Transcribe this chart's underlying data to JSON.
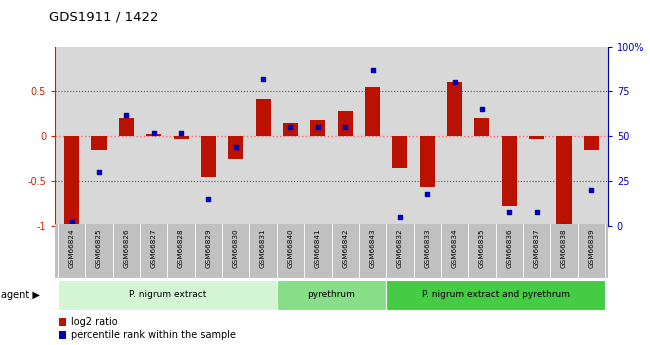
{
  "title": "GDS1911 / 1422",
  "samples": [
    "GSM66824",
    "GSM66825",
    "GSM66826",
    "GSM66827",
    "GSM66828",
    "GSM66829",
    "GSM66830",
    "GSM66831",
    "GSM66840",
    "GSM66841",
    "GSM66842",
    "GSM66843",
    "GSM66832",
    "GSM66833",
    "GSM66834",
    "GSM66835",
    "GSM66836",
    "GSM66837",
    "GSM66838",
    "GSM66839"
  ],
  "log2_ratio": [
    -1.0,
    -0.15,
    0.2,
    0.02,
    -0.03,
    -0.45,
    -0.25,
    0.42,
    0.15,
    0.18,
    0.28,
    0.55,
    -0.35,
    -0.56,
    0.6,
    0.2,
    -0.78,
    -0.03,
    -1.0,
    -0.15
  ],
  "percentile": [
    2,
    30,
    62,
    52,
    52,
    15,
    44,
    82,
    55,
    55,
    55,
    87,
    5,
    18,
    80,
    65,
    8,
    8,
    0,
    20
  ],
  "groups": [
    {
      "label": "P. nigrum extract",
      "start": 0,
      "end": 8,
      "color": "#d4f5d4"
    },
    {
      "label": "pyrethrum",
      "start": 8,
      "end": 12,
      "color": "#88dd88"
    },
    {
      "label": "P. nigrum extract and pyrethrum",
      "start": 12,
      "end": 20,
      "color": "#44cc44"
    }
  ],
  "bar_color": "#bb1100",
  "marker_color": "#0000bb",
  "plot_bg_color": "#d8d8d8",
  "tick_area_bg": "#c0c0c0",
  "ylim": [
    -1.0,
    1.0
  ],
  "y2lim": [
    0,
    100
  ],
  "yticks_left": [
    -1.0,
    -0.5,
    0.0,
    0.5
  ],
  "ytick_labels_left": [
    "-1",
    "-0.5",
    "0",
    "0.5"
  ],
  "y2ticks": [
    0,
    25,
    50,
    75,
    100
  ],
  "y2ticklabels": [
    "0",
    "25",
    "50",
    "75",
    "100%"
  ],
  "zero_line_color": "#ff6666",
  "dot_line_color": "#555555",
  "legend_items": [
    {
      "label": "log2 ratio",
      "color": "#bb1100"
    },
    {
      "label": "percentile rank within the sample",
      "color": "#0000bb"
    }
  ]
}
